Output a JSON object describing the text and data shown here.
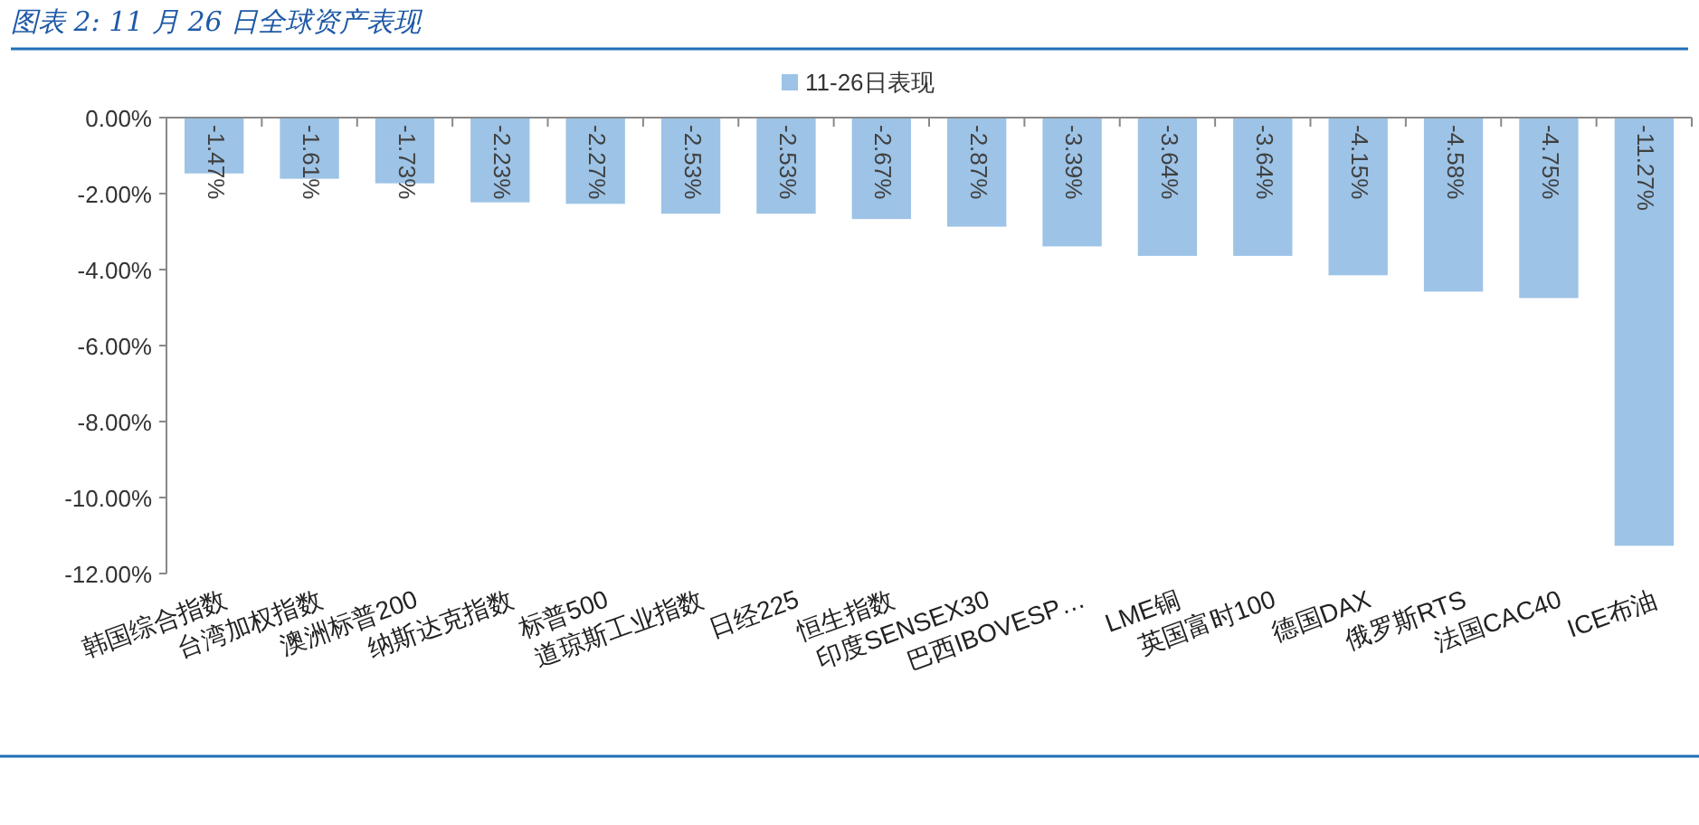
{
  "chart_data": {
    "type": "bar",
    "title": "图表 2:  11 月 26 日全球资产表现",
    "categories": [
      "韩国综合指数",
      "台湾加权指数",
      "澳洲标普200",
      "纳斯达克指数",
      "标普500",
      "道琼斯工业指数",
      "日经225",
      "恒生指数",
      "印度SENSEX30",
      "巴西IBOVESP…",
      "LME铜",
      "英国富时100",
      "德国DAX",
      "俄罗斯RTS",
      "法国CAC40",
      "ICE布油"
    ],
    "series": [
      {
        "name": "11-26日表现",
        "color": "#9dc3e6",
        "values": [
          -1.47,
          -1.61,
          -1.73,
          -2.23,
          -2.27,
          -2.53,
          -2.53,
          -2.67,
          -2.87,
          -3.39,
          -3.64,
          -3.64,
          -4.15,
          -4.58,
          -4.75,
          -11.27
        ],
        "value_labels": [
          "-1.47%",
          "-1.61%",
          "-1.73%",
          "-2.23%",
          "-2.27%",
          "-2.53%",
          "-2.53%",
          "-2.67%",
          "-2.87%",
          "-3.39%",
          "-3.64%",
          "-3.64%",
          "-4.15%",
          "-4.58%",
          "-4.75%",
          "-11.27%"
        ]
      }
    ],
    "ylim": [
      -12,
      0
    ],
    "yticks": [
      {
        "value": 0,
        "label": "0.00%"
      },
      {
        "value": -2,
        "label": "-2.00%"
      },
      {
        "value": -4,
        "label": "-4.00%"
      },
      {
        "value": -6,
        "label": "-6.00%"
      },
      {
        "value": -8,
        "label": "-8.00%"
      },
      {
        "value": -10,
        "label": "-10.00%"
      },
      {
        "value": -12,
        "label": "-12.00%"
      }
    ],
    "grid": false,
    "legend": "top"
  }
}
